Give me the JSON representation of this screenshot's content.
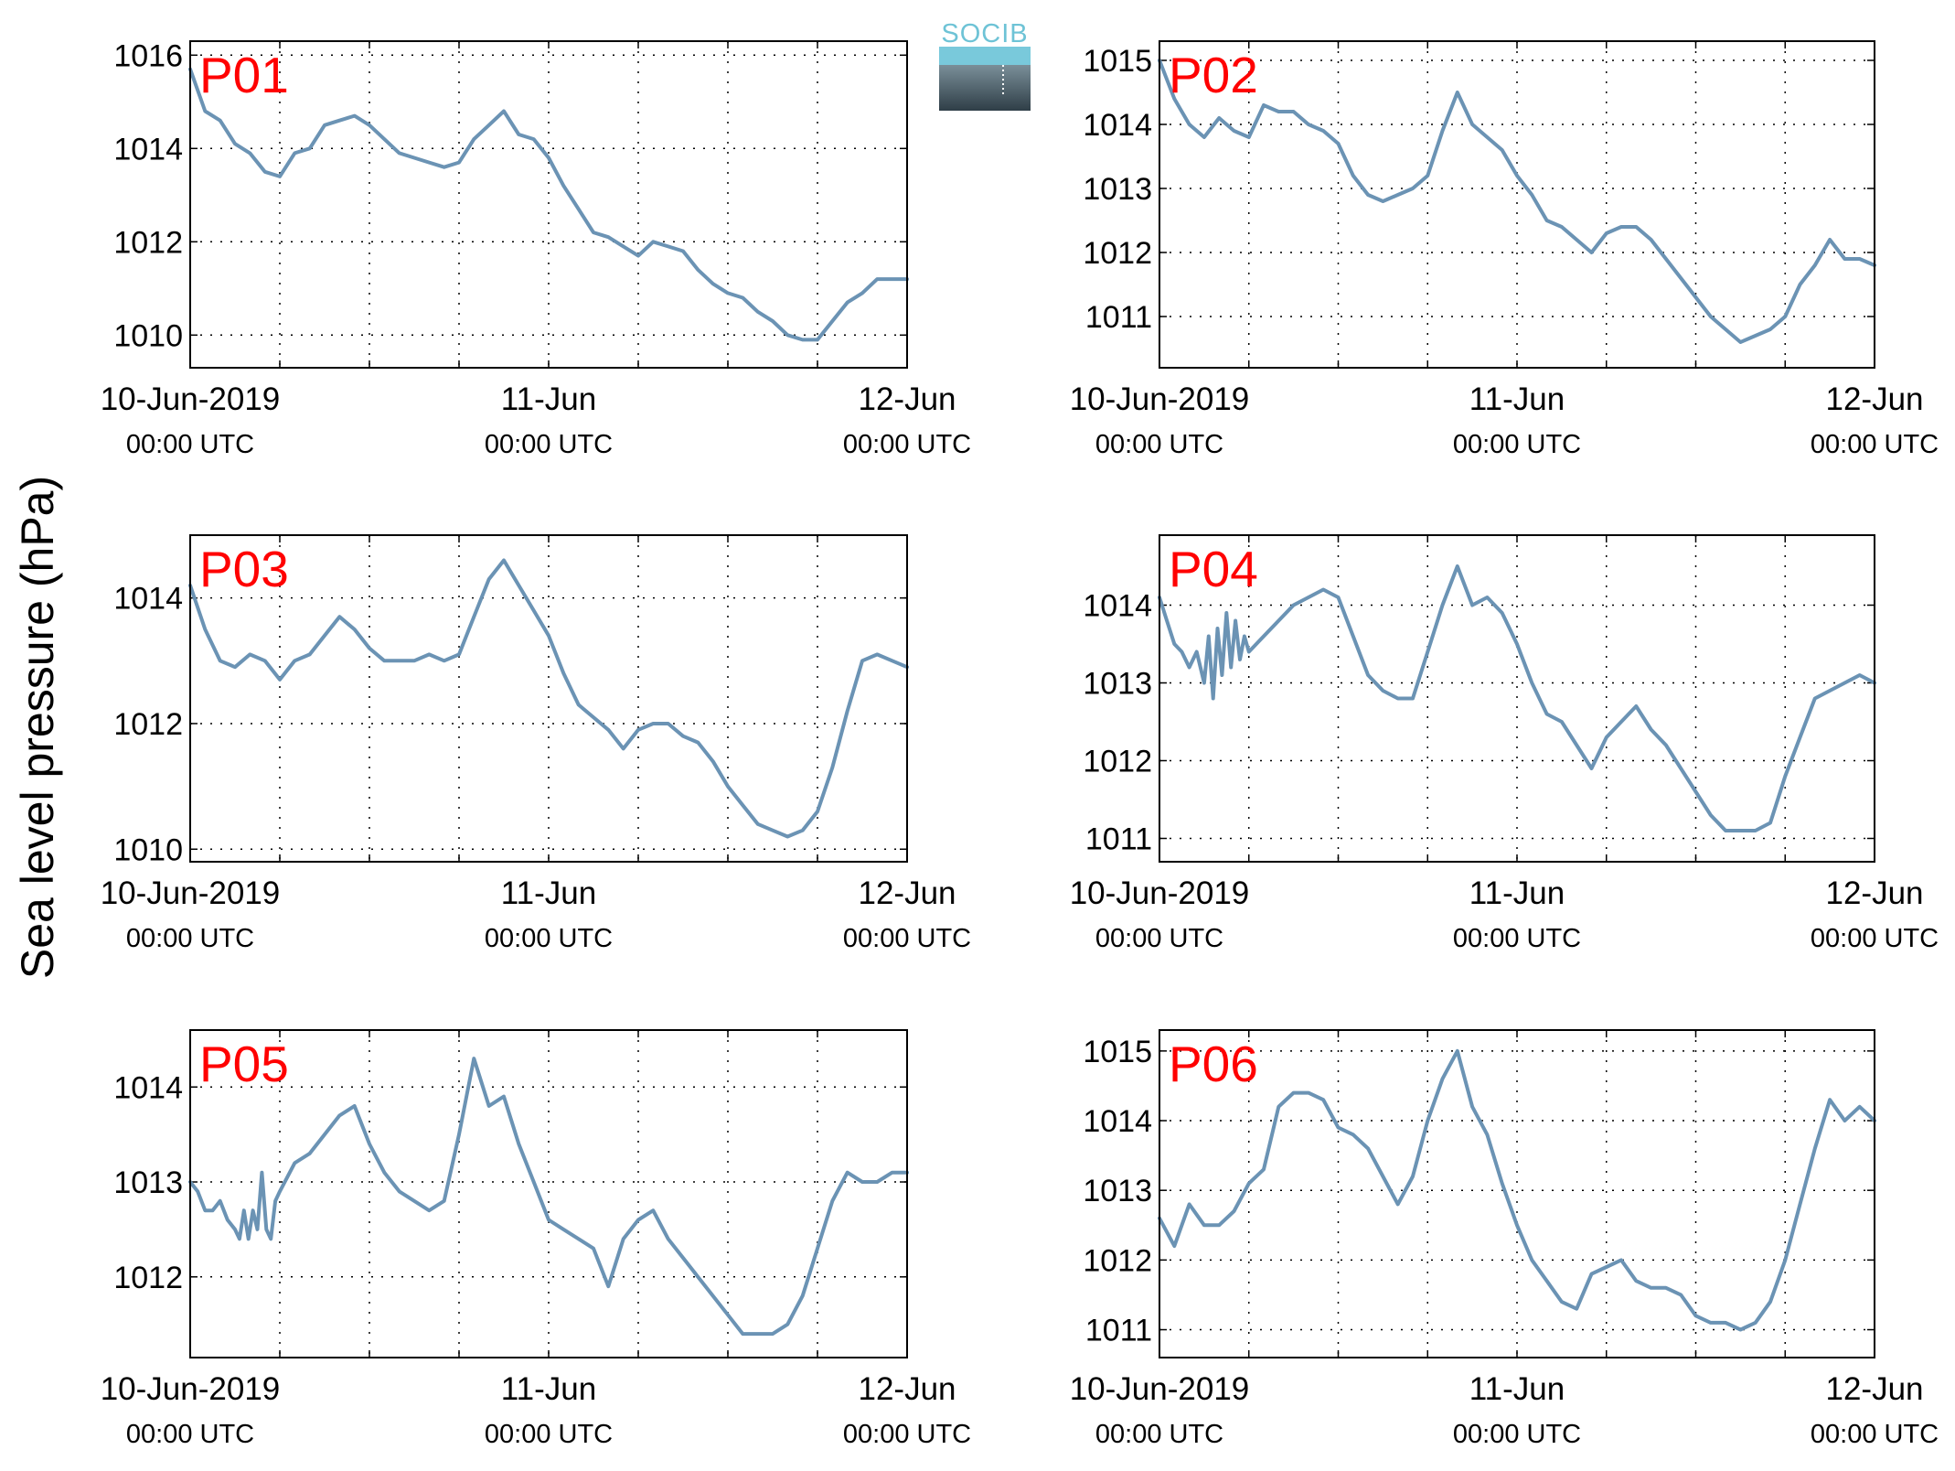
{
  "figure": {
    "ylabel": "Sea level pressure (hPa)",
    "logo_text": "SOCIB",
    "colors": {
      "line": "#6b93b4",
      "label": "#ff0000",
      "logo_top": "#6ec3d6",
      "logo_bottom": "#2f3e47"
    }
  },
  "chart_data": [
    {
      "type": "line",
      "title": "P01",
      "x_ticks": [
        {
          "line1": "10-Jun-2019",
          "line2": "00:00 UTC"
        },
        {
          "line1": "11-Jun",
          "line2": "00:00 UTC"
        },
        {
          "line1": "12-Jun",
          "line2": "00:00 UTC"
        }
      ],
      "y_ticks": [
        1010,
        1012,
        1014,
        1016
      ],
      "ylim": [
        1009.3,
        1016.3
      ],
      "series": [
        {
          "x": [
            0,
            1,
            2,
            3,
            4,
            5,
            6,
            7,
            8,
            9,
            10,
            11,
            12,
            13,
            14,
            15,
            16,
            17,
            18,
            19,
            20,
            21,
            22,
            23,
            24,
            25,
            26,
            27,
            28,
            29,
            30,
            31,
            32,
            33,
            34,
            35,
            36,
            37,
            38,
            39,
            40,
            41,
            42,
            43,
            44,
            45,
            46,
            47,
            48
          ],
          "values": [
            1015.7,
            1014.8,
            1014.6,
            1014.1,
            1013.9,
            1013.5,
            1013.4,
            1013.9,
            1014.0,
            1014.5,
            1014.6,
            1014.7,
            1014.5,
            1014.2,
            1013.9,
            1013.8,
            1013.7,
            1013.6,
            1013.7,
            1014.2,
            1014.5,
            1014.8,
            1014.3,
            1014.2,
            1013.8,
            1013.2,
            1012.7,
            1012.2,
            1012.1,
            1011.9,
            1011.7,
            1012.0,
            1011.9,
            1011.8,
            1011.4,
            1011.1,
            1010.9,
            1010.8,
            1010.5,
            1010.3,
            1010.0,
            1009.9,
            1009.9,
            1010.3,
            1010.7,
            1010.9,
            1011.2,
            1011.2,
            1011.2
          ]
        }
      ]
    },
    {
      "type": "line",
      "title": "P02",
      "x_ticks": [
        {
          "line1": "10-Jun-2019",
          "line2": "00:00 UTC"
        },
        {
          "line1": "11-Jun",
          "line2": "00:00 UTC"
        },
        {
          "line1": "12-Jun",
          "line2": "00:00 UTC"
        }
      ],
      "y_ticks": [
        1011,
        1012,
        1013,
        1014,
        1015
      ],
      "ylim": [
        1010.2,
        1015.3
      ],
      "series": [
        {
          "x": [
            0,
            1,
            2,
            3,
            4,
            5,
            6,
            7,
            8,
            9,
            10,
            11,
            12,
            13,
            14,
            15,
            16,
            17,
            18,
            19,
            20,
            21,
            22,
            23,
            24,
            25,
            26,
            27,
            28,
            29,
            30,
            31,
            32,
            33,
            34,
            35,
            36,
            37,
            38,
            39,
            40,
            41,
            42,
            43,
            44,
            45,
            46,
            47,
            48
          ],
          "values": [
            1015.0,
            1014.4,
            1014.0,
            1013.8,
            1014.1,
            1013.9,
            1013.8,
            1014.3,
            1014.2,
            1014.2,
            1014.0,
            1013.9,
            1013.7,
            1013.2,
            1012.9,
            1012.8,
            1012.9,
            1013.0,
            1013.2,
            1013.9,
            1014.5,
            1014.0,
            1013.8,
            1013.6,
            1013.2,
            1012.9,
            1012.5,
            1012.4,
            1012.2,
            1012.0,
            1012.3,
            1012.4,
            1012.4,
            1012.2,
            1011.9,
            1011.6,
            1011.3,
            1011.0,
            1010.8,
            1010.6,
            1010.7,
            1010.8,
            1011.0,
            1011.5,
            1011.8,
            1012.2,
            1011.9,
            1011.9,
            1011.8
          ]
        }
      ]
    },
    {
      "type": "line",
      "title": "P03",
      "x_ticks": [
        {
          "line1": "10-Jun-2019",
          "line2": "00:00 UTC"
        },
        {
          "line1": "11-Jun",
          "line2": "00:00 UTC"
        },
        {
          "line1": "12-Jun",
          "line2": "00:00 UTC"
        }
      ],
      "y_ticks": [
        1010,
        1012,
        1014
      ],
      "ylim": [
        1009.8,
        1015.0
      ],
      "series": [
        {
          "x": [
            0,
            1,
            2,
            3,
            4,
            5,
            6,
            7,
            8,
            9,
            10,
            11,
            12,
            13,
            14,
            15,
            16,
            17,
            18,
            19,
            20,
            21,
            22,
            23,
            24,
            25,
            26,
            27,
            28,
            29,
            30,
            31,
            32,
            33,
            34,
            35,
            36,
            37,
            38,
            39,
            40,
            41,
            42,
            43,
            44,
            45,
            46,
            47,
            48
          ],
          "values": [
            1014.2,
            1013.5,
            1013.0,
            1012.9,
            1013.1,
            1013.0,
            1012.7,
            1013.0,
            1013.1,
            1013.4,
            1013.7,
            1013.5,
            1013.2,
            1013.0,
            1013.0,
            1013.0,
            1013.1,
            1013.0,
            1013.1,
            1013.7,
            1014.3,
            1014.6,
            1014.2,
            1013.8,
            1013.4,
            1012.8,
            1012.3,
            1012.1,
            1011.9,
            1011.6,
            1011.9,
            1012.0,
            1012.0,
            1011.8,
            1011.7,
            1011.4,
            1011.0,
            1010.7,
            1010.4,
            1010.3,
            1010.2,
            1010.3,
            1010.6,
            1011.3,
            1012.2,
            1013.0,
            1013.1,
            1013.0,
            1012.9
          ]
        }
      ]
    },
    {
      "type": "line",
      "title": "P04",
      "x_ticks": [
        {
          "line1": "10-Jun-2019",
          "line2": "00:00 UTC"
        },
        {
          "line1": "11-Jun",
          "line2": "00:00 UTC"
        },
        {
          "line1": "12-Jun",
          "line2": "00:00 UTC"
        }
      ],
      "y_ticks": [
        1011,
        1012,
        1013,
        1014
      ],
      "ylim": [
        1010.7,
        1014.9
      ],
      "series": [
        {
          "x": [
            0,
            0.5,
            1,
            1.5,
            2,
            2.5,
            3,
            3.3,
            3.6,
            3.9,
            4.2,
            4.5,
            4.8,
            5.1,
            5.4,
            5.7,
            6,
            7,
            8,
            9,
            10,
            11,
            12,
            13,
            14,
            15,
            16,
            17,
            18,
            19,
            20,
            21,
            22,
            23,
            24,
            25,
            26,
            27,
            28,
            29,
            30,
            31,
            32,
            33,
            34,
            35,
            36,
            37,
            38,
            39,
            40,
            41,
            42,
            43,
            44,
            45,
            46,
            47,
            48
          ],
          "values": [
            1014.1,
            1013.8,
            1013.5,
            1013.4,
            1013.2,
            1013.4,
            1013.0,
            1013.6,
            1012.8,
            1013.7,
            1013.1,
            1013.9,
            1013.2,
            1013.8,
            1013.3,
            1013.6,
            1013.4,
            1013.6,
            1013.8,
            1014.0,
            1014.1,
            1014.2,
            1014.1,
            1013.6,
            1013.1,
            1012.9,
            1012.8,
            1012.8,
            1013.4,
            1014.0,
            1014.5,
            1014.0,
            1014.1,
            1013.9,
            1013.5,
            1013.0,
            1012.6,
            1012.5,
            1012.2,
            1011.9,
            1012.3,
            1012.5,
            1012.7,
            1012.4,
            1012.2,
            1011.9,
            1011.6,
            1011.3,
            1011.1,
            1011.1,
            1011.1,
            1011.2,
            1011.8,
            1012.3,
            1012.8,
            1012.9,
            1013.0,
            1013.1,
            1013.0
          ]
        }
      ]
    },
    {
      "type": "line",
      "title": "P05",
      "x_ticks": [
        {
          "line1": "10-Jun-2019",
          "line2": "00:00 UTC"
        },
        {
          "line1": "11-Jun",
          "line2": "00:00 UTC"
        },
        {
          "line1": "12-Jun",
          "line2": "00:00 UTC"
        }
      ],
      "y_ticks": [
        1012,
        1013,
        1014
      ],
      "ylim": [
        1011.15,
        1014.6
      ],
      "series": [
        {
          "x": [
            0,
            0.5,
            1,
            1.5,
            2,
            2.5,
            3,
            3.3,
            3.6,
            3.9,
            4.2,
            4.5,
            4.8,
            5.1,
            5.4,
            5.7,
            6,
            7,
            8,
            9,
            10,
            11,
            12,
            13,
            14,
            15,
            16,
            17,
            18,
            19,
            20,
            21,
            22,
            23,
            24,
            25,
            26,
            27,
            28,
            29,
            30,
            31,
            32,
            33,
            34,
            35,
            36,
            37,
            38,
            39,
            40,
            41,
            42,
            43,
            44,
            45,
            46,
            47,
            48
          ],
          "values": [
            1013.0,
            1012.9,
            1012.7,
            1012.7,
            1012.8,
            1012.6,
            1012.5,
            1012.4,
            1012.7,
            1012.4,
            1012.7,
            1012.5,
            1013.1,
            1012.5,
            1012.4,
            1012.8,
            1012.9,
            1013.2,
            1013.3,
            1013.5,
            1013.7,
            1013.8,
            1013.4,
            1013.1,
            1012.9,
            1012.8,
            1012.7,
            1012.8,
            1013.5,
            1014.3,
            1013.8,
            1013.9,
            1013.4,
            1013.0,
            1012.6,
            1012.5,
            1012.4,
            1012.3,
            1011.9,
            1012.4,
            1012.6,
            1012.7,
            1012.4,
            1012.2,
            1012.0,
            1011.8,
            1011.6,
            1011.4,
            1011.4,
            1011.4,
            1011.5,
            1011.8,
            1012.3,
            1012.8,
            1013.1,
            1013.0,
            1013.0,
            1013.1,
            1013.1
          ]
        }
      ]
    },
    {
      "type": "line",
      "title": "P06",
      "x_ticks": [
        {
          "line1": "10-Jun-2019",
          "line2": "00:00 UTC"
        },
        {
          "line1": "11-Jun",
          "line2": "00:00 UTC"
        },
        {
          "line1": "12-Jun",
          "line2": "00:00 UTC"
        }
      ],
      "y_ticks": [
        1011,
        1012,
        1013,
        1014,
        1015
      ],
      "ylim": [
        1010.6,
        1015.3
      ],
      "series": [
        {
          "x": [
            0,
            1,
            2,
            3,
            4,
            5,
            6,
            7,
            8,
            9,
            10,
            11,
            12,
            13,
            14,
            15,
            16,
            17,
            18,
            19,
            20,
            21,
            22,
            23,
            24,
            25,
            26,
            27,
            28,
            29,
            30,
            31,
            32,
            33,
            34,
            35,
            36,
            37,
            38,
            39,
            40,
            41,
            42,
            43,
            44,
            45,
            46,
            47,
            48
          ],
          "values": [
            1012.6,
            1012.2,
            1012.8,
            1012.5,
            1012.5,
            1012.7,
            1013.1,
            1013.3,
            1014.2,
            1014.4,
            1014.4,
            1014.3,
            1013.9,
            1013.8,
            1013.6,
            1013.2,
            1012.8,
            1013.2,
            1014.0,
            1014.6,
            1015.0,
            1014.2,
            1013.8,
            1013.1,
            1012.5,
            1012.0,
            1011.7,
            1011.4,
            1011.3,
            1011.8,
            1011.9,
            1012.0,
            1011.7,
            1011.6,
            1011.6,
            1011.5,
            1011.2,
            1011.1,
            1011.1,
            1011.0,
            1011.1,
            1011.4,
            1012.0,
            1012.8,
            1013.6,
            1014.3,
            1014.0,
            1014.2,
            1014.0
          ]
        }
      ]
    }
  ]
}
